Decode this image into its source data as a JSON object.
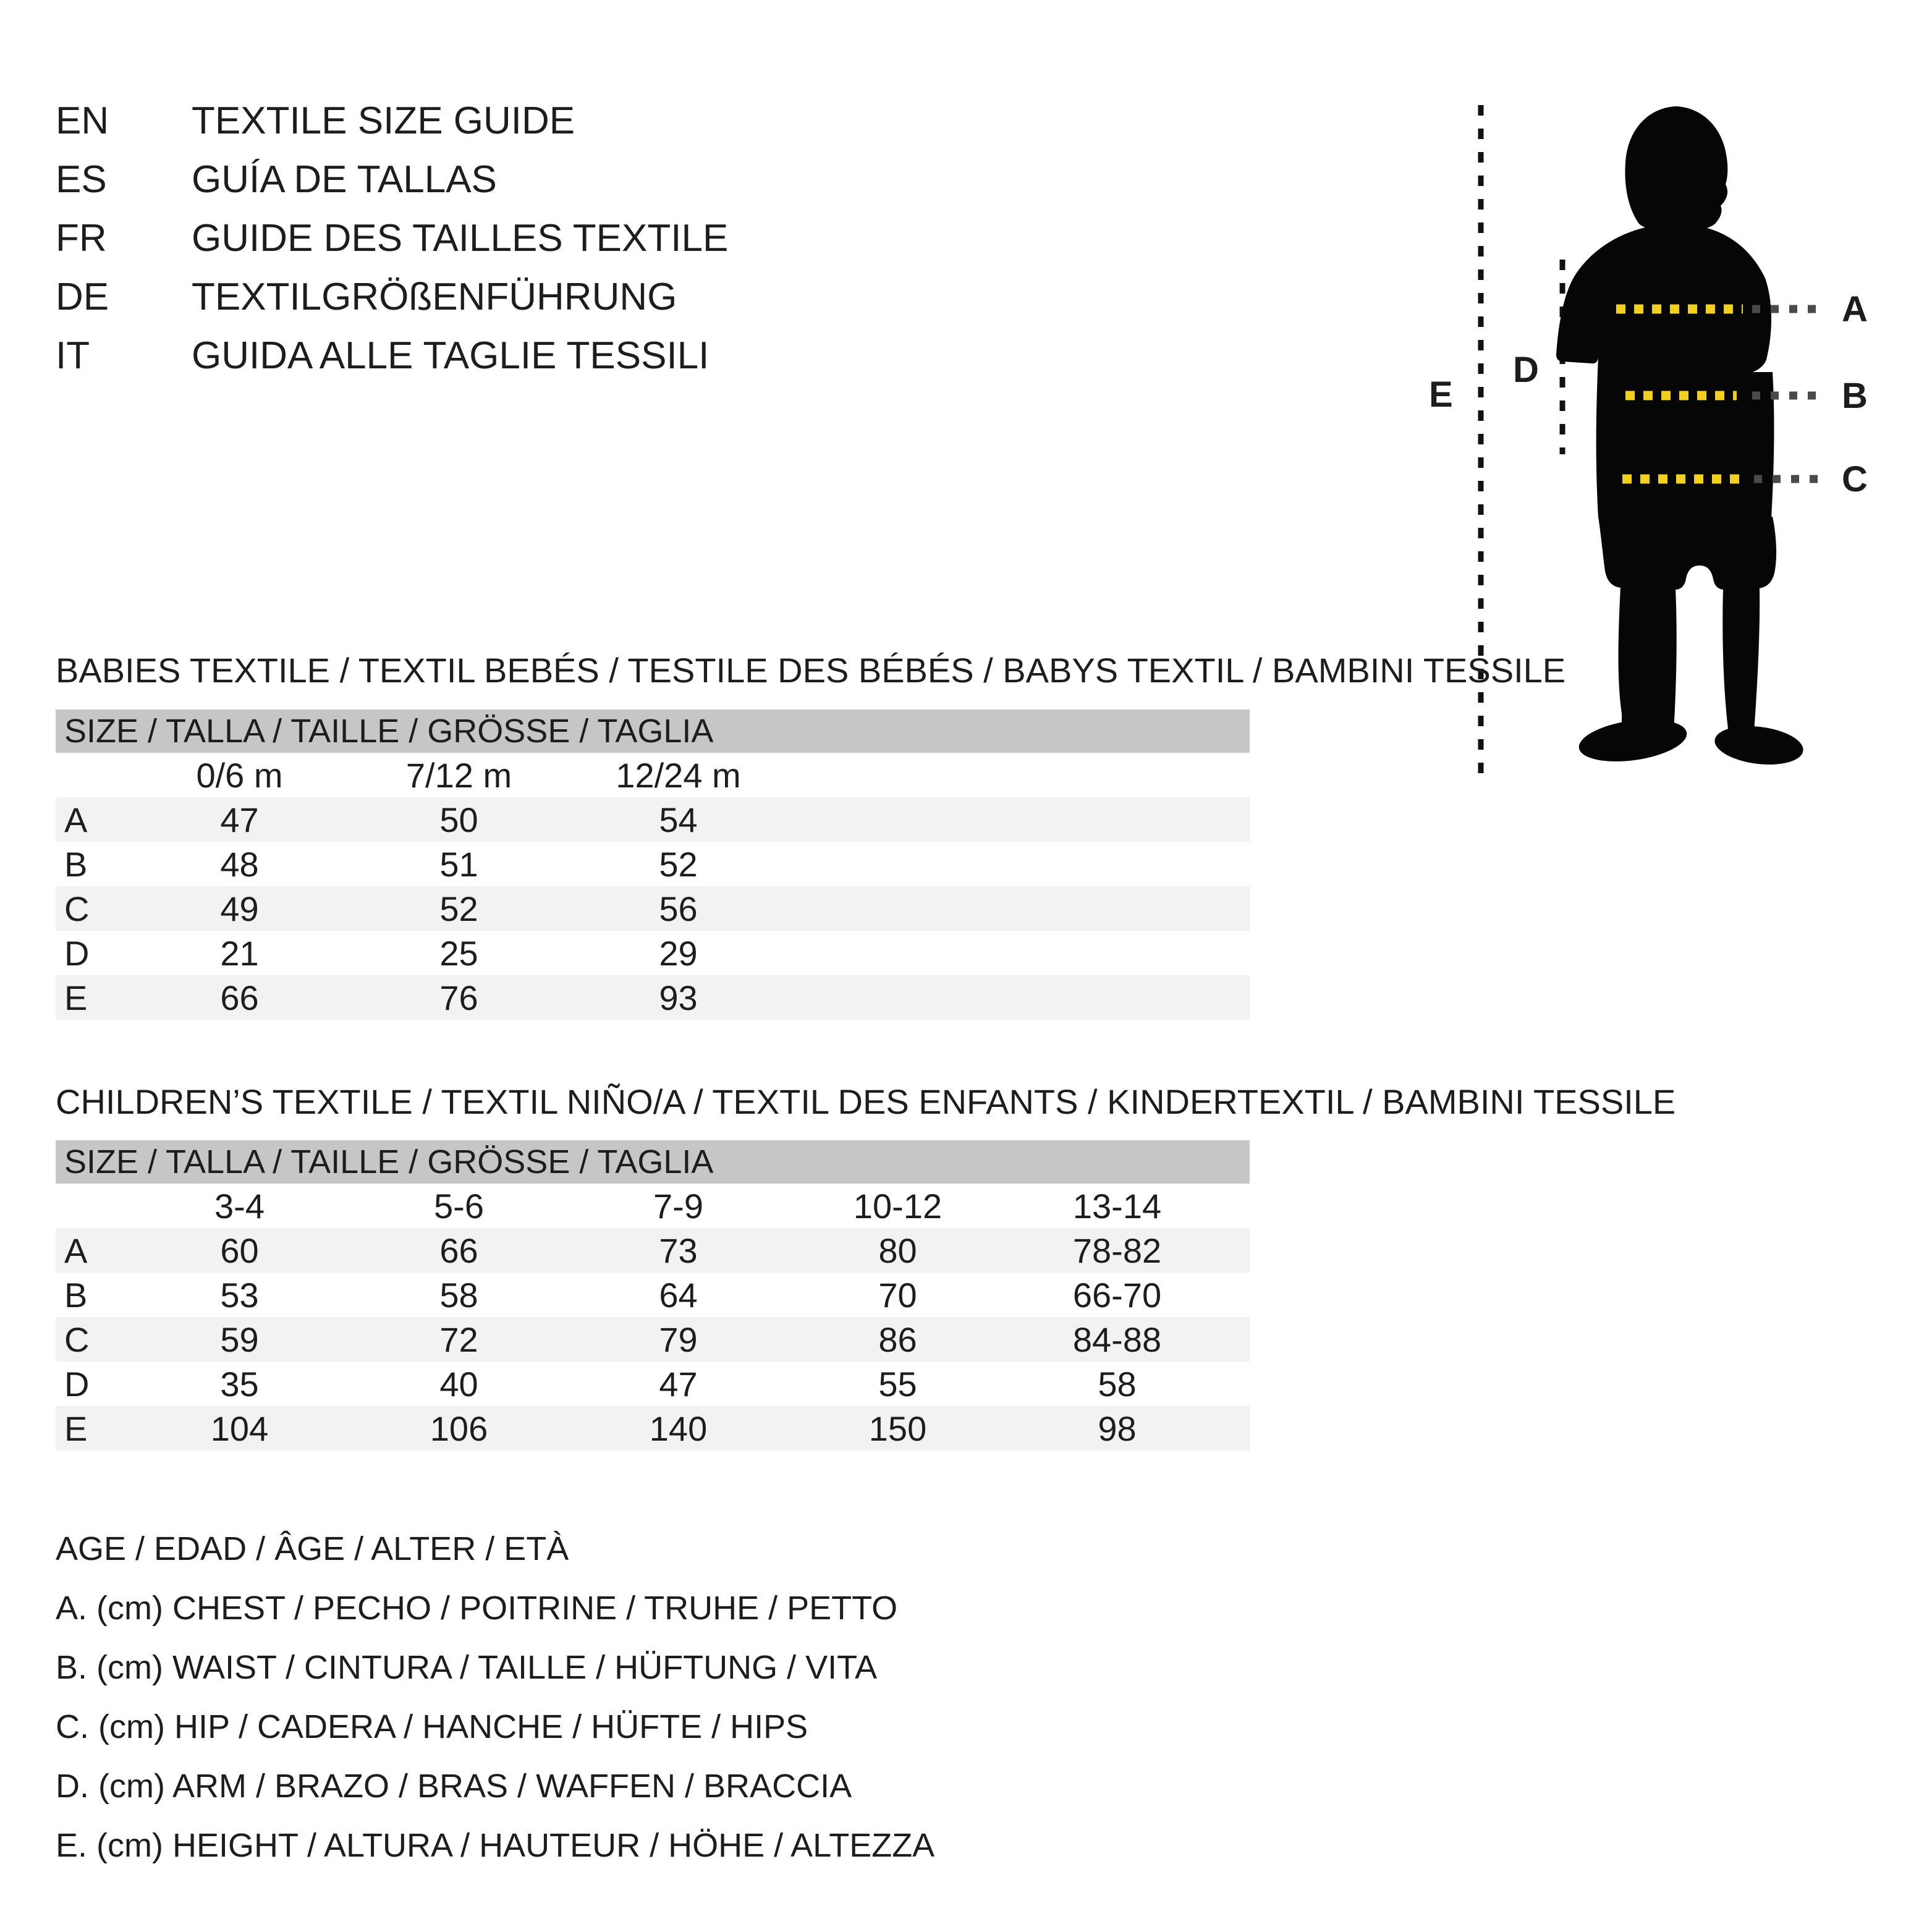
{
  "colors": {
    "accent_yellow": "#f2d11e",
    "header_bar_gray": "#c6c6c6",
    "row_stripe_gray": "#f2f2f2",
    "text_black": "#1d1d1b",
    "silhouette_black": "#060606",
    "extension_dot_gray": "#4a4a4a"
  },
  "language_guide": {
    "items": [
      {
        "code": "EN",
        "title": "TEXTILE SIZE GUIDE"
      },
      {
        "code": "ES",
        "title": "GUÍA DE TALLAS"
      },
      {
        "code": "FR",
        "title": "GUIDE DES TAILLES TEXTILE"
      },
      {
        "code": "DE",
        "title": "TEXTILGRÖßENFÜHRUNG"
      },
      {
        "code": "IT",
        "title": "GUIDA ALLE TAGLIE TESSILI"
      }
    ]
  },
  "figure": {
    "label_a": "A",
    "label_b": "B",
    "label_c": "C",
    "label_d": "D",
    "label_e": "E"
  },
  "babies": {
    "heading": "BABIES TEXTILE / TEXTIL BEBÉS / TESTILE DES BÉBÉS / BABYS TEXTIL / BAMBINI TESSILE",
    "table": {
      "size_header": "SIZE / TALLA / TAILLE / GRÖSSE / TAGLIA",
      "columns": [
        "0/6 m",
        "7/12 m",
        "12/24 m"
      ],
      "rows": [
        {
          "label": "A",
          "values": [
            "47",
            "50",
            "54"
          ]
        },
        {
          "label": "B",
          "values": [
            "48",
            "51",
            "52"
          ]
        },
        {
          "label": "C",
          "values": [
            "49",
            "52",
            "56"
          ]
        },
        {
          "label": "D",
          "values": [
            "21",
            "25",
            "29"
          ]
        },
        {
          "label": "E",
          "values": [
            "66",
            "76",
            "93"
          ]
        }
      ]
    }
  },
  "children": {
    "heading": "CHILDREN’S TEXTILE / TEXTIL NIÑO/A / TEXTIL DES ENFANTS / KINDERTEXTIL / BAMBINI TESSILE",
    "table": {
      "size_header": "SIZE / TALLA / TAILLE / GRÖSSE / TAGLIA",
      "columns": [
        "3-4",
        "5-6",
        "7-9",
        "10-12",
        "13-14"
      ],
      "rows": [
        {
          "label": "A",
          "values": [
            "60",
            "66",
            "73",
            "80",
            "78-82"
          ]
        },
        {
          "label": "B",
          "values": [
            "53",
            "58",
            "64",
            "70",
            "66-70"
          ]
        },
        {
          "label": "C",
          "values": [
            "59",
            "72",
            "79",
            "86",
            "84-88"
          ]
        },
        {
          "label": "D",
          "values": [
            "35",
            "40",
            "47",
            "55",
            "58"
          ]
        },
        {
          "label": "E",
          "values": [
            "104",
            "106",
            "140",
            "150",
            "98"
          ]
        }
      ]
    }
  },
  "legend": {
    "lines": [
      "AGE / EDAD / ÂGE / ALTER / ETÀ",
      "A. (cm) CHEST / PECHO / POITRINE / TRUHE / PETTO",
      "B. (cm) WAIST / CINTURA / TAILLE / HÜFTUNG / VITA",
      "C. (cm) HIP / CADERA / HANCHE / HÜFTE / HIPS",
      "D. (cm) ARM / BRAZO / BRAS / WAFFEN / BRACCIA",
      "E. (cm) HEIGHT / ALTURA / HAUTEUR / HÖHE / ALTEZZA"
    ]
  }
}
